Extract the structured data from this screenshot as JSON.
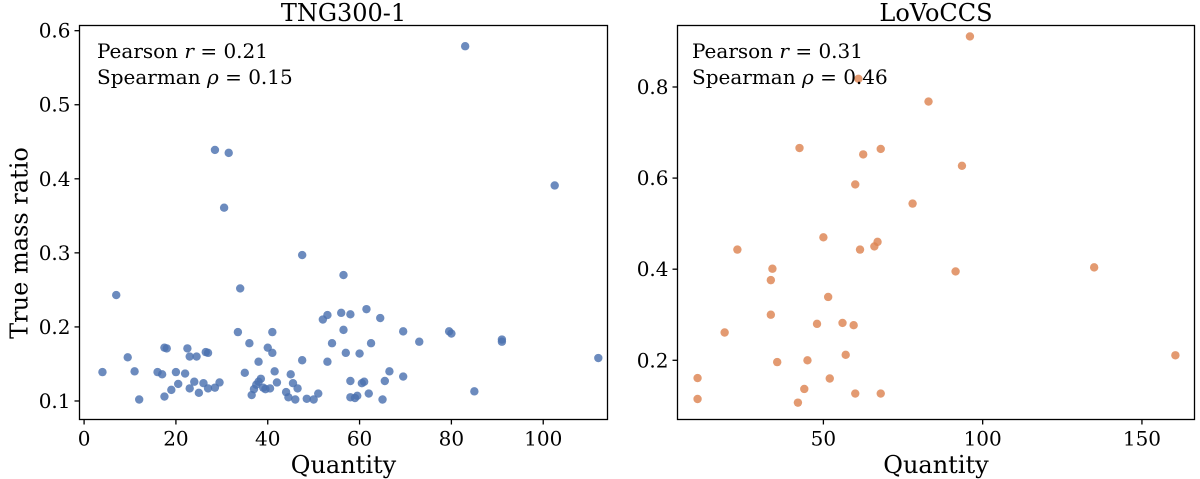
{
  "chart_data": [
    {
      "type": "scatter",
      "title": "TNG300-1",
      "xlabel": "Quantity",
      "ylabel": "True mass ratio",
      "xlim": [
        -1,
        114
      ],
      "ylim": [
        0.075,
        0.607
      ],
      "xticks": [
        0,
        20,
        40,
        60,
        80,
        100
      ],
      "yticks": [
        0.1,
        0.2,
        0.3,
        0.4,
        0.5,
        0.6
      ],
      "xtick_labels": [
        "0",
        "20",
        "40",
        "60",
        "80",
        "100"
      ],
      "ytick_labels": [
        "0.1",
        "0.2",
        "0.3",
        "0.4",
        "0.5",
        "0.6"
      ],
      "color": "#4c72b0",
      "annotations": [
        {
          "label": "Pearson ",
          "symbol": "r",
          "value": " = 0.21"
        },
        {
          "label": "Spearman ",
          "symbol": "ρ",
          "value": " = 0.15"
        }
      ],
      "points": [
        [
          4,
          0.139
        ],
        [
          7,
          0.243
        ],
        [
          9.5,
          0.159
        ],
        [
          11,
          0.14
        ],
        [
          12,
          0.102
        ],
        [
          16,
          0.139
        ],
        [
          17,
          0.136
        ],
        [
          17.5,
          0.106
        ],
        [
          17.5,
          0.172
        ],
        [
          18,
          0.171
        ],
        [
          19,
          0.115
        ],
        [
          20,
          0.139
        ],
        [
          20.5,
          0.123
        ],
        [
          22,
          0.137
        ],
        [
          22.5,
          0.171
        ],
        [
          23,
          0.16
        ],
        [
          23,
          0.117
        ],
        [
          24,
          0.126
        ],
        [
          24.5,
          0.16
        ],
        [
          25,
          0.111
        ],
        [
          26,
          0.124
        ],
        [
          26.5,
          0.166
        ],
        [
          27,
          0.165
        ],
        [
          27,
          0.117
        ],
        [
          28.5,
          0.439
        ],
        [
          28.5,
          0.118
        ],
        [
          29.5,
          0.125
        ],
        [
          30.5,
          0.361
        ],
        [
          31.5,
          0.435
        ],
        [
          33.5,
          0.193
        ],
        [
          34,
          0.252
        ],
        [
          35,
          0.138
        ],
        [
          36,
          0.178
        ],
        [
          36.5,
          0.108
        ],
        [
          37,
          0.116
        ],
        [
          37.5,
          0.122
        ],
        [
          38,
          0.153
        ],
        [
          38,
          0.126
        ],
        [
          38.5,
          0.13
        ],
        [
          39,
          0.118
        ],
        [
          39.5,
          0.116
        ],
        [
          40,
          0.172
        ],
        [
          40.5,
          0.117
        ],
        [
          41,
          0.165
        ],
        [
          41,
          0.193
        ],
        [
          41.5,
          0.14
        ],
        [
          42,
          0.125
        ],
        [
          44,
          0.112
        ],
        [
          44.5,
          0.105
        ],
        [
          45,
          0.136
        ],
        [
          45.5,
          0.124
        ],
        [
          46,
          0.102
        ],
        [
          46.5,
          0.117
        ],
        [
          47.5,
          0.297
        ],
        [
          47.5,
          0.155
        ],
        [
          48.5,
          0.103
        ],
        [
          50,
          0.102
        ],
        [
          51,
          0.11
        ],
        [
          52,
          0.21
        ],
        [
          53,
          0.216
        ],
        [
          53,
          0.153
        ],
        [
          54,
          0.178
        ],
        [
          56,
          0.219
        ],
        [
          56.5,
          0.27
        ],
        [
          56.5,
          0.196
        ],
        [
          57,
          0.165
        ],
        [
          58,
          0.217
        ],
        [
          58,
          0.127
        ],
        [
          58,
          0.105
        ],
        [
          59,
          0.104
        ],
        [
          59.5,
          0.107
        ],
        [
          60,
          0.164
        ],
        [
          60.5,
          0.124
        ],
        [
          61,
          0.126
        ],
        [
          61.5,
          0.224
        ],
        [
          62,
          0.11
        ],
        [
          62.5,
          0.178
        ],
        [
          64.5,
          0.212
        ],
        [
          65,
          0.102
        ],
        [
          65.5,
          0.127
        ],
        [
          66.5,
          0.14
        ],
        [
          69.5,
          0.194
        ],
        [
          69.5,
          0.133
        ],
        [
          73,
          0.18
        ],
        [
          79.5,
          0.194
        ],
        [
          80,
          0.191
        ],
        [
          83,
          0.579
        ],
        [
          85,
          0.113
        ],
        [
          91,
          0.18
        ],
        [
          91,
          0.183
        ],
        [
          102.5,
          0.391
        ],
        [
          112,
          0.158
        ]
      ]
    },
    {
      "type": "scatter",
      "title": "LoVoCCS",
      "xlabel": "Quantity",
      "ylabel": "",
      "xlim": [
        4.2,
        166.5
      ],
      "ylim": [
        0.07,
        0.935
      ],
      "xticks": [
        50,
        100,
        150
      ],
      "yticks": [
        0.2,
        0.4,
        0.6,
        0.8
      ],
      "xtick_labels": [
        "50",
        "100",
        "150"
      ],
      "ytick_labels": [
        "0.2",
        "0.4",
        "0.6",
        "0.8"
      ],
      "color": "#dd8452",
      "annotations": [
        {
          "label": "Pearson ",
          "symbol": "r",
          "value": " = 0.31"
        },
        {
          "label": "Spearman ",
          "symbol": "ρ",
          "value": " = 0.46"
        }
      ],
      "points": [
        [
          10.5,
          0.161
        ],
        [
          10.5,
          0.115
        ],
        [
          19,
          0.261
        ],
        [
          23,
          0.443
        ],
        [
          33.5,
          0.376
        ],
        [
          33.5,
          0.3
        ],
        [
          34,
          0.401
        ],
        [
          35.5,
          0.196
        ],
        [
          42,
          0.107
        ],
        [
          42.5,
          0.666
        ],
        [
          44,
          0.137
        ],
        [
          45,
          0.2
        ],
        [
          48,
          0.28
        ],
        [
          50,
          0.47
        ],
        [
          51.5,
          0.339
        ],
        [
          52,
          0.16
        ],
        [
          56,
          0.282
        ],
        [
          57,
          0.212
        ],
        [
          59.5,
          0.277
        ],
        [
          60,
          0.127
        ],
        [
          60,
          0.586
        ],
        [
          61,
          0.818
        ],
        [
          61.5,
          0.443
        ],
        [
          62.5,
          0.652
        ],
        [
          66,
          0.45
        ],
        [
          67,
          0.46
        ],
        [
          68,
          0.127
        ],
        [
          68,
          0.664
        ],
        [
          78,
          0.544
        ],
        [
          83,
          0.768
        ],
        [
          91.5,
          0.395
        ],
        [
          93.5,
          0.627
        ],
        [
          96,
          0.911
        ],
        [
          135,
          0.404
        ],
        [
          160.5,
          0.211
        ]
      ]
    }
  ]
}
